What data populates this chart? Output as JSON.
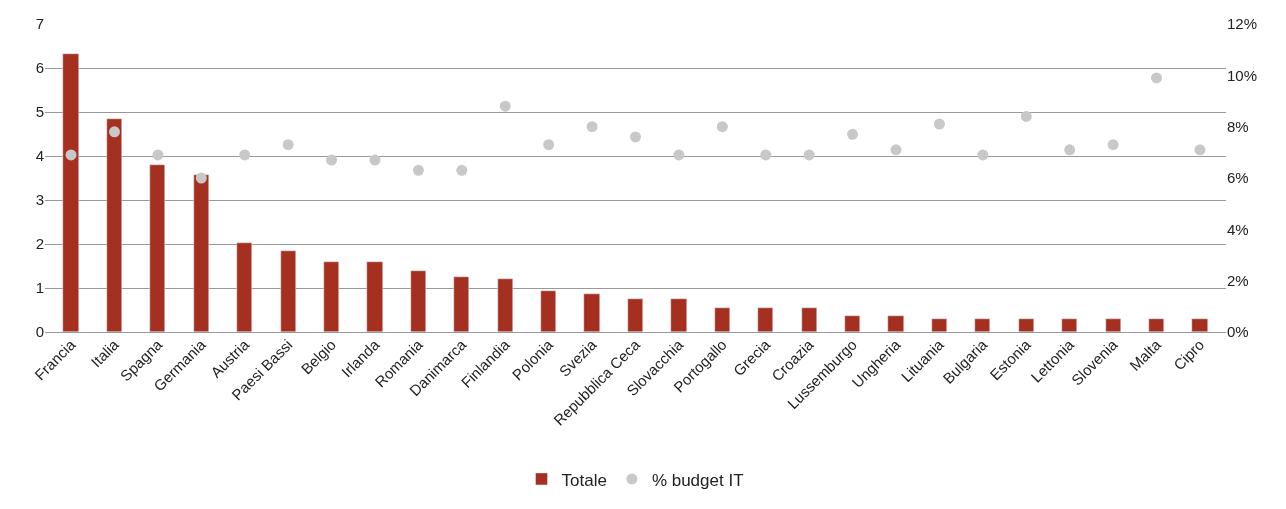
{
  "chart_data": {
    "type": "bar",
    "categories": [
      "Francia",
      "Italia",
      "Spagna",
      "Germania",
      "Austria",
      "Paesi Bassi",
      "Belgio",
      "Irlanda",
      "Romania",
      "Danimarca",
      "Finlandia",
      "Polonia",
      "Svezia",
      "Repubblica Ceca",
      "Slovacchia",
      "Portogallo",
      "Grecia",
      "Croazia",
      "Lussemburgo",
      "Ungheria",
      "Lituania",
      "Bulgaria",
      "Estonia",
      "Lettonia",
      "Slovenia",
      "Malta",
      "Cipro"
    ],
    "series": [
      {
        "name": "Totale",
        "color": "#a5301f",
        "values": [
          6.32,
          4.83,
          3.8,
          3.56,
          2.02,
          1.83,
          1.59,
          1.59,
          1.39,
          1.25,
          1.2,
          0.94,
          0.87,
          0.75,
          0.75,
          0.55,
          0.55,
          0.55,
          0.36,
          0.36,
          0.3,
          0.3,
          0.3,
          0.3,
          0.3,
          0.3,
          0.3
        ]
      },
      {
        "name": "% budget IT",
        "type": "scatter",
        "axis": "y2",
        "color": "#c8c8c8",
        "values": [
          6.9,
          7.8,
          6.9,
          6.0,
          6.9,
          7.3,
          6.7,
          6.7,
          6.3,
          6.3,
          8.8,
          7.3,
          8.0,
          7.6,
          6.9,
          8.0,
          6.9,
          6.9,
          7.7,
          7.1,
          8.1,
          6.9,
          8.4,
          7.1,
          7.3,
          9.9,
          7.1
        ]
      }
    ],
    "ylim": [
      0,
      7
    ],
    "yticks": [
      0,
      1,
      2,
      3,
      4,
      5,
      6,
      7
    ],
    "y2lim": [
      0,
      12
    ],
    "y2ticks": [
      {
        "value": 0,
        "label": "0%"
      },
      {
        "value": 2,
        "label": "2%"
      },
      {
        "value": 4,
        "label": "4%"
      },
      {
        "value": 6,
        "label": "6%"
      },
      {
        "value": 8,
        "label": "8%"
      },
      {
        "value": 10,
        "label": "10%"
      },
      {
        "value": 12,
        "label": "12%"
      }
    ],
    "grid": "y",
    "legend": "bottom",
    "marker": "circle"
  }
}
